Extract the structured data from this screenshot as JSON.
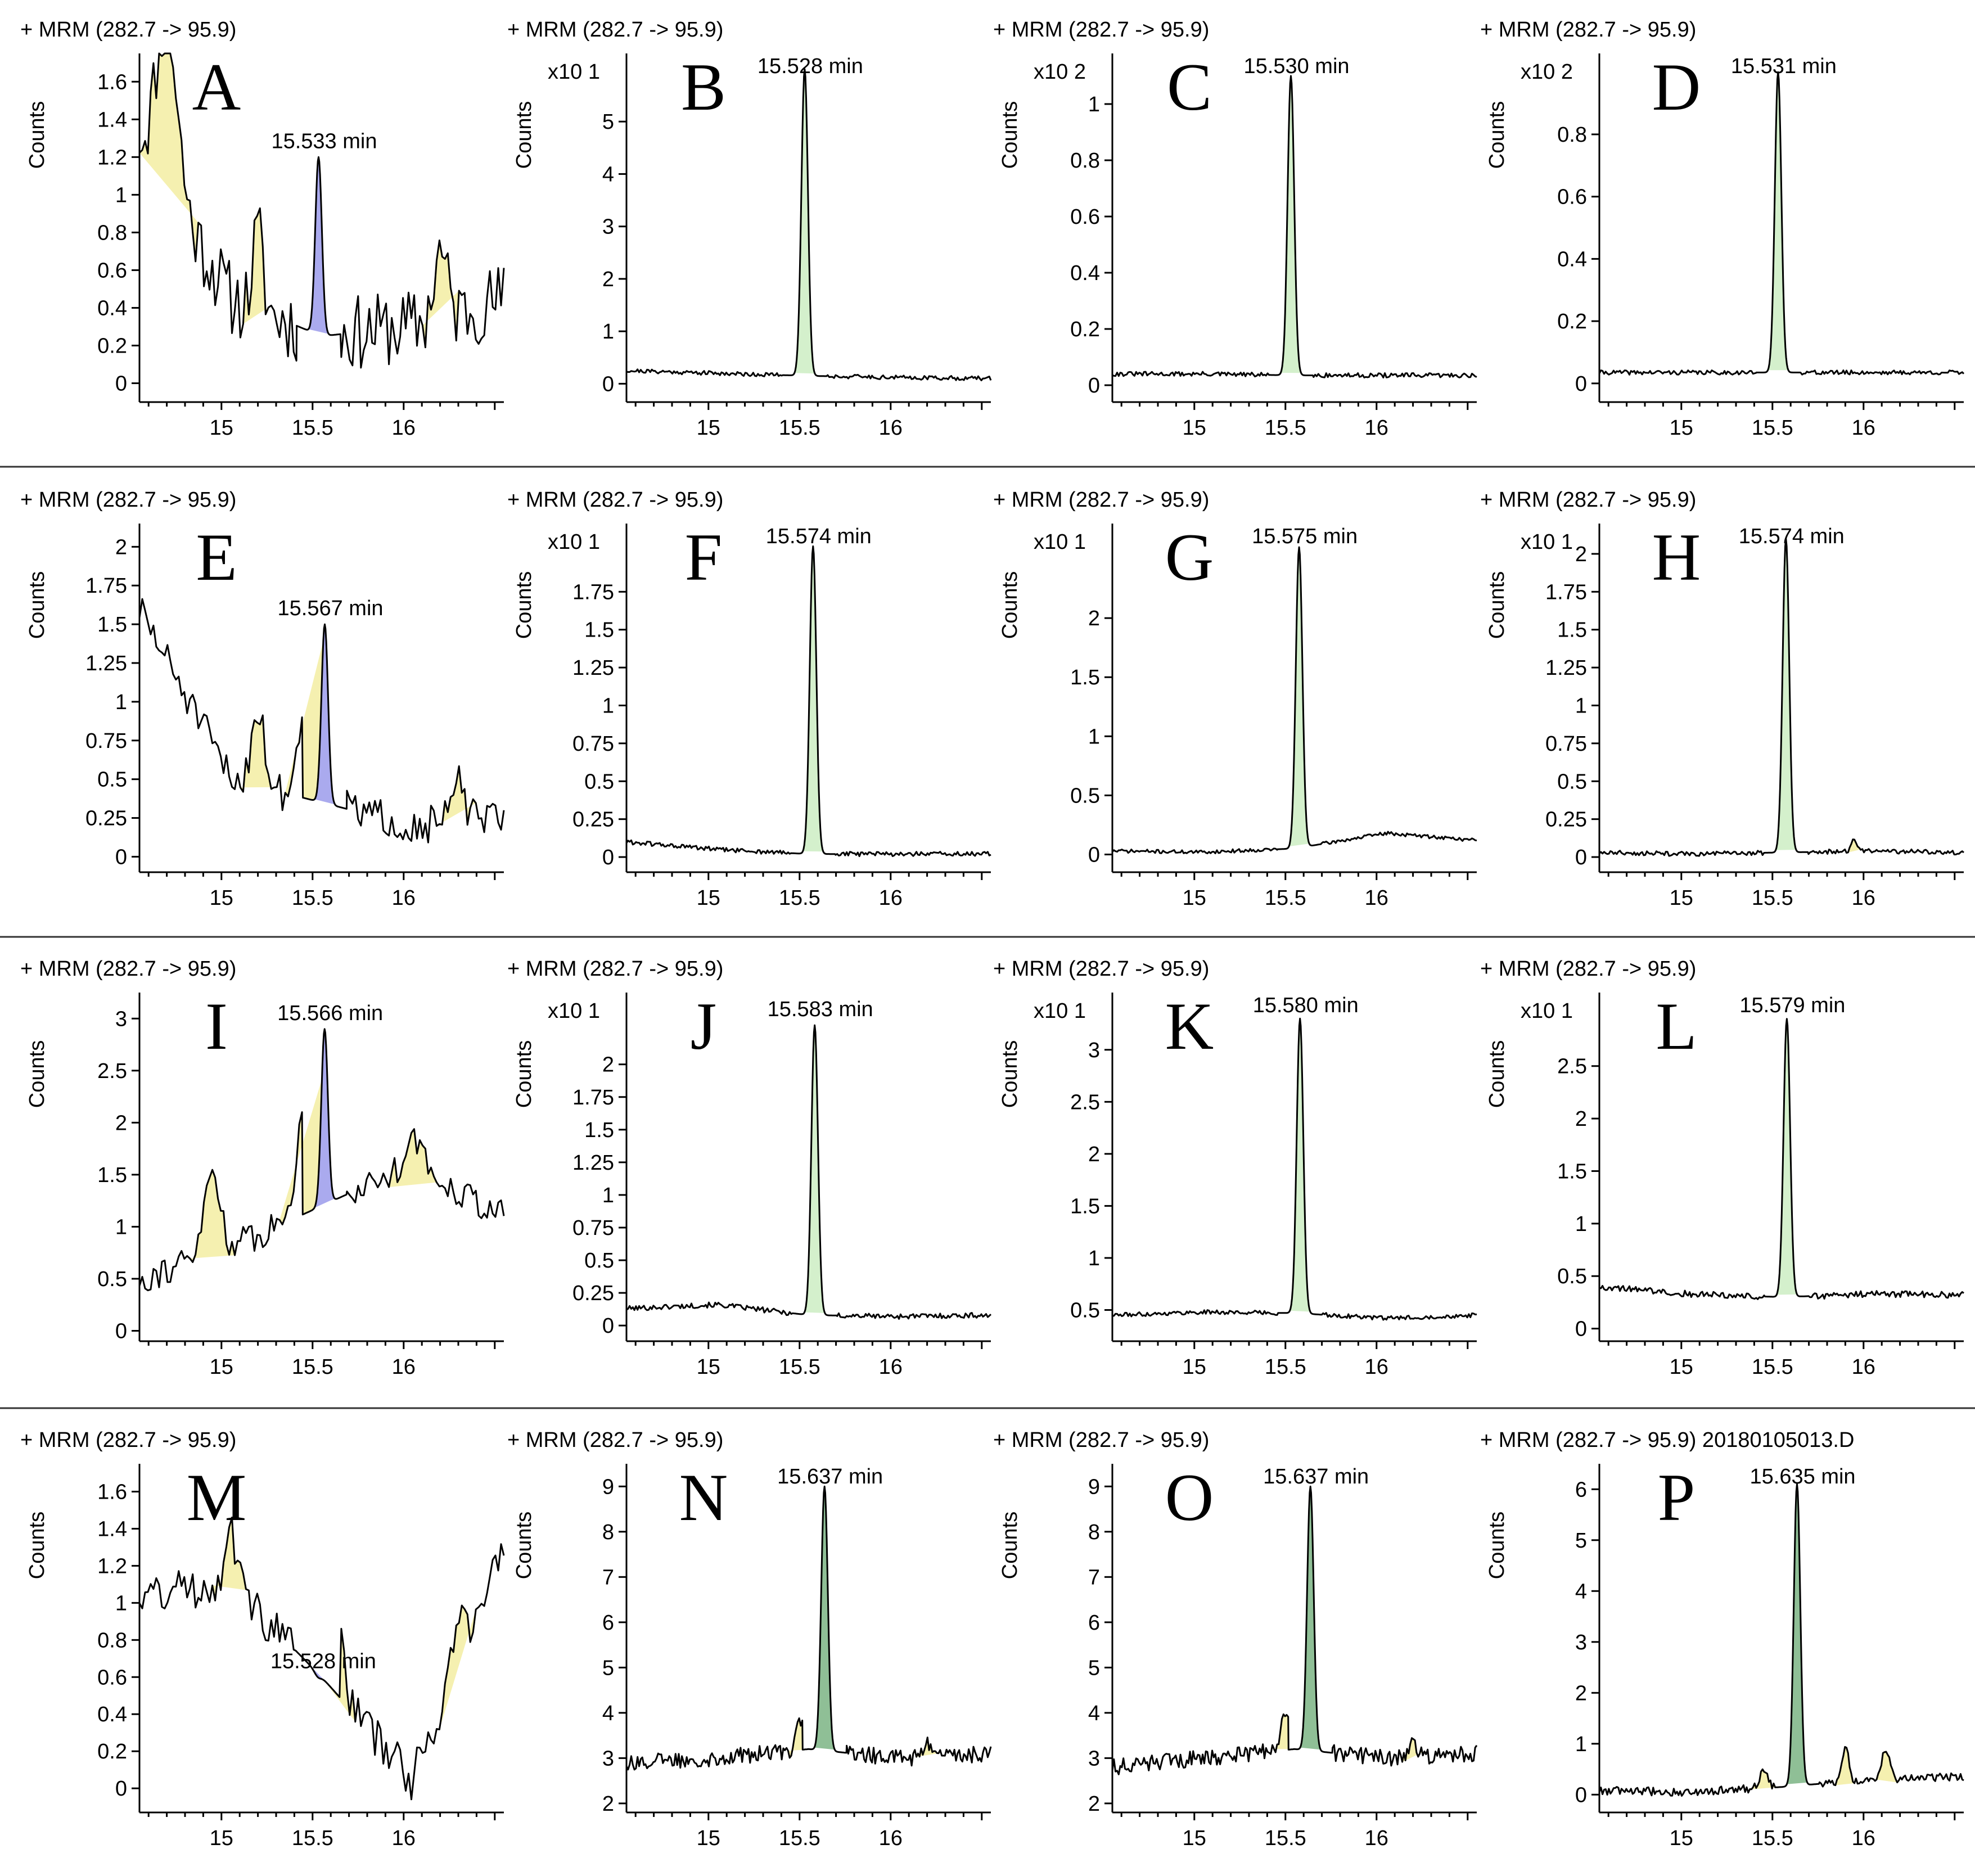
{
  "figure": {
    "colors": {
      "trace": "#000000",
      "peak_green": "#d4f0cc",
      "peak_dark_green": "#8fbf96",
      "peak_blue": "#aaaaee",
      "noise_yellow": "#f5f0b0",
      "separator": "#333333"
    }
  },
  "chart_data": [
    {
      "label": "A",
      "type": "line",
      "header": "+ MRM (282.7 -> 95.9)",
      "ylabel": "Counts",
      "exponent": "",
      "peak_label": "15.533 min",
      "peak_rt": 15.533,
      "peak_height": 1.2,
      "peak_fill": "blue",
      "noise": "high",
      "baseline": [
        1.3,
        0.45,
        0.25,
        0.3,
        0.45
      ],
      "noise_amp": 0.2,
      "humps": [
        {
          "x": 14.7,
          "h": 0.9,
          "w": 0.08
        },
        {
          "x": 15.2,
          "h": 0.4,
          "w": 0.04
        },
        {
          "x": 16.2,
          "h": 0.35,
          "w": 0.05
        }
      ],
      "yticks": [
        0,
        0.2,
        0.4,
        0.6,
        0.8,
        1,
        1.2,
        1.4,
        1.6
      ],
      "ylim": [
        -0.1,
        1.75
      ],
      "xticks": [
        15,
        15.5,
        16
      ],
      "xlim": [
        14.55,
        16.55
      ],
      "seed": 11
    },
    {
      "label": "B",
      "type": "line",
      "header": "+ MRM (282.7 -> 95.9)",
      "ylabel": "Counts",
      "exponent": "x10 1",
      "peak_label": "15.528 min",
      "peak_rt": 15.528,
      "peak_height": 6.0,
      "peak_fill": "green",
      "noise": "low",
      "baseline": [
        0.25,
        0.2,
        0.15,
        0.12,
        0.1
      ],
      "noise_amp": 0.04,
      "humps": [],
      "yticks": [
        0,
        1,
        2,
        3,
        4,
        5
      ],
      "ylim": [
        -0.35,
        6.3
      ],
      "xticks": [
        15,
        15.5,
        16
      ],
      "xlim": [
        14.55,
        16.55
      ],
      "seed": 21
    },
    {
      "label": "C",
      "type": "line",
      "header": "+ MRM (282.7 -> 95.9)",
      "ylabel": "Counts",
      "exponent": "x10 2",
      "peak_label": "15.530 min",
      "peak_rt": 15.53,
      "peak_height": 1.1,
      "peak_fill": "green",
      "noise": "low",
      "baseline": [
        0.04,
        0.04,
        0.035,
        0.035,
        0.035
      ],
      "noise_amp": 0.008,
      "humps": [],
      "yticks": [
        0,
        0.2,
        0.4,
        0.6,
        0.8,
        1
      ],
      "ylim": [
        -0.06,
        1.18
      ],
      "xticks": [
        15,
        15.5,
        16
      ],
      "xlim": [
        14.55,
        16.55
      ],
      "seed": 31
    },
    {
      "label": "D",
      "type": "line",
      "header": "+ MRM (282.7 -> 95.9)",
      "ylabel": "Counts",
      "exponent": "x10 2",
      "peak_label": "15.531 min",
      "peak_rt": 15.531,
      "peak_height": 1.0,
      "peak_fill": "green",
      "noise": "low",
      "baseline": [
        0.035,
        0.035,
        0.035,
        0.035,
        0.035
      ],
      "noise_amp": 0.007,
      "humps": [],
      "yticks": [
        0,
        0.2,
        0.4,
        0.6,
        0.8
      ],
      "ylim": [
        -0.06,
        1.06
      ],
      "xticks": [
        15,
        15.5,
        16
      ],
      "xlim": [
        14.55,
        16.55
      ],
      "seed": 41
    },
    {
      "label": "E",
      "type": "line",
      "header": "+ MRM (282.7 -> 95.9)",
      "ylabel": "Counts",
      "exponent": "",
      "peak_label": "15.567 min",
      "peak_rt": 15.567,
      "peak_height": 1.5,
      "peak_fill": "blue",
      "noise": "high",
      "baseline": [
        1.6,
        0.5,
        0.35,
        0.2,
        0.25
      ],
      "noise_amp": 0.12,
      "humps": [
        {
          "x": 15.2,
          "h": 0.5,
          "w": 0.05
        },
        {
          "x": 15.45,
          "h": 0.5,
          "w": 0.05
        },
        {
          "x": 16.3,
          "h": 0.25,
          "w": 0.05
        }
      ],
      "yticks": [
        0,
        0.25,
        0.5,
        0.75,
        1,
        1.25,
        1.5,
        1.75,
        2
      ],
      "ylim": [
        -0.1,
        2.15
      ],
      "xticks": [
        15,
        15.5,
        16
      ],
      "xlim": [
        14.55,
        16.55
      ],
      "seed": 51
    },
    {
      "label": "F",
      "type": "line",
      "header": "+ MRM (282.7 -> 95.9)",
      "ylabel": "Counts",
      "exponent": "x10 1",
      "peak_label": "15.574 min",
      "peak_rt": 15.574,
      "peak_height": 2.05,
      "peak_fill": "green",
      "noise": "low",
      "baseline": [
        0.1,
        0.05,
        0.02,
        0.02,
        0.02
      ],
      "noise_amp": 0.015,
      "humps": [],
      "yticks": [
        0,
        0.25,
        0.5,
        0.75,
        1,
        1.25,
        1.5,
        1.75
      ],
      "ylim": [
        -0.1,
        2.2
      ],
      "xticks": [
        15,
        15.5,
        16
      ],
      "xlim": [
        14.55,
        16.55
      ],
      "seed": 61
    },
    {
      "label": "G",
      "type": "line",
      "header": "+ MRM (282.7 -> 95.9)",
      "ylabel": "Counts",
      "exponent": "x10 1",
      "peak_label": "15.575 min",
      "peak_rt": 15.575,
      "peak_height": 2.6,
      "peak_fill": "green",
      "noise": "low",
      "baseline": [
        0.03,
        0.02,
        0.05,
        0.18,
        0.12
      ],
      "noise_amp": 0.015,
      "humps": [],
      "yticks": [
        0,
        0.5,
        1,
        1.5,
        2
      ],
      "ylim": [
        -0.15,
        2.8
      ],
      "xticks": [
        15,
        15.5,
        16
      ],
      "xlim": [
        14.55,
        16.55
      ],
      "seed": 71
    },
    {
      "label": "H",
      "type": "line",
      "header": "+ MRM (282.7 -> 95.9)",
      "ylabel": "Counts",
      "exponent": "x10 1",
      "peak_label": "15.574 min",
      "peak_rt": 15.574,
      "peak_height": 2.1,
      "peak_fill": "green",
      "noise": "low",
      "baseline": [
        0.03,
        0.02,
        0.03,
        0.04,
        0.03
      ],
      "noise_amp": 0.015,
      "humps": [
        {
          "x": 15.95,
          "h": 0.08,
          "w": 0.02
        }
      ],
      "yticks": [
        0,
        0.25,
        0.5,
        0.75,
        1,
        1.25,
        1.5,
        1.75,
        2
      ],
      "ylim": [
        -0.1,
        2.2
      ],
      "xticks": [
        15,
        15.5,
        16
      ],
      "xlim": [
        14.55,
        16.55
      ],
      "seed": 81
    },
    {
      "label": "I",
      "type": "line",
      "header": "+ MRM (282.7 -> 95.9)",
      "ylabel": "Counts",
      "exponent": "",
      "peak_label": "15.566 min",
      "peak_rt": 15.566,
      "peak_height": 2.9,
      "peak_fill": "blue",
      "noise": "high",
      "baseline": [
        0.5,
        0.8,
        1.2,
        1.6,
        1.1
      ],
      "noise_amp": 0.15,
      "humps": [
        {
          "x": 14.95,
          "h": 0.8,
          "w": 0.06
        },
        {
          "x": 15.45,
          "h": 0.9,
          "w": 0.06
        },
        {
          "x": 16.05,
          "h": 0.3,
          "w": 0.06
        }
      ],
      "yticks": [
        0,
        0.5,
        1,
        1.5,
        2,
        2.5,
        3
      ],
      "ylim": [
        -0.1,
        3.25
      ],
      "xticks": [
        15,
        15.5,
        16
      ],
      "xlim": [
        14.55,
        16.55
      ],
      "seed": 91
    },
    {
      "label": "J",
      "type": "line",
      "header": "+ MRM (282.7 -> 95.9)",
      "ylabel": "Counts",
      "exponent": "x10 1",
      "peak_label": "15.583 min",
      "peak_rt": 15.583,
      "peak_height": 2.3,
      "peak_fill": "green",
      "noise": "low",
      "baseline": [
        0.13,
        0.16,
        0.08,
        0.07,
        0.08
      ],
      "noise_amp": 0.02,
      "humps": [],
      "yticks": [
        0,
        0.25,
        0.5,
        0.75,
        1,
        1.25,
        1.5,
        1.75,
        2
      ],
      "ylim": [
        -0.12,
        2.55
      ],
      "xticks": [
        15,
        15.5,
        16
      ],
      "xlim": [
        14.55,
        16.55
      ],
      "seed": 101
    },
    {
      "label": "K",
      "type": "line",
      "header": "+ MRM (282.7 -> 95.9)",
      "ylabel": "Counts",
      "exponent": "x10 1",
      "peak_label": "15.580 min",
      "peak_rt": 15.58,
      "peak_height": 3.3,
      "peak_fill": "green",
      "noise": "low",
      "baseline": [
        0.45,
        0.48,
        0.47,
        0.42,
        0.45
      ],
      "noise_amp": 0.02,
      "humps": [],
      "yticks": [
        0.5,
        1,
        1.5,
        2,
        2.5,
        3
      ],
      "ylim": [
        0.2,
        3.55
      ],
      "xticks": [
        15,
        15.5,
        16
      ],
      "xlim": [
        14.55,
        16.55
      ],
      "seed": 111
    },
    {
      "label": "L",
      "type": "line",
      "header": "+ MRM (282.7 -> 95.9)",
      "ylabel": "Counts",
      "exponent": "x10 1",
      "peak_label": "15.579 min",
      "peak_rt": 15.579,
      "peak_height": 2.95,
      "peak_fill": "green",
      "noise": "low",
      "baseline": [
        0.4,
        0.33,
        0.3,
        0.33,
        0.32
      ],
      "noise_amp": 0.03,
      "humps": [],
      "yticks": [
        0,
        0.5,
        1,
        1.5,
        2,
        2.5
      ],
      "ylim": [
        -0.12,
        3.2
      ],
      "xticks": [
        15,
        15.5,
        16
      ],
      "xlim": [
        14.55,
        16.55
      ],
      "seed": 121
    },
    {
      "label": "M",
      "type": "line",
      "header": "+ MRM (282.7 -> 95.9)",
      "ylabel": "Counts",
      "exponent": "",
      "peak_label": "15.528 min",
      "peak_rt": 15.528,
      "peak_height": 0.6,
      "peak_fill": "blue",
      "noise": "high",
      "baseline": [
        1.05,
        1.1,
        0.6,
        0.05,
        1.3
      ],
      "noise_amp": 0.12,
      "humps": [
        {
          "x": 15.05,
          "h": 0.3,
          "w": 0.05
        },
        {
          "x": 15.65,
          "h": 0.4,
          "w": 0.04
        },
        {
          "x": 16.3,
          "h": 0.25,
          "w": 0.05
        }
      ],
      "yticks": [
        0,
        0.2,
        0.4,
        0.6,
        0.8,
        1,
        1.2,
        1.4,
        1.6
      ],
      "ylim": [
        -0.13,
        1.75
      ],
      "xticks": [
        15,
        15.5,
        16
      ],
      "xlim": [
        14.55,
        16.55
      ],
      "seed": 131
    },
    {
      "label": "N",
      "type": "line",
      "header": "+ MRM (282.7 -> 95.9)",
      "ylabel": "Counts",
      "exponent": "",
      "peak_label": "15.637 min",
      "peak_rt": 15.637,
      "peak_height": 9.0,
      "peak_fill": "darkgreen",
      "noise": "mid",
      "baseline": [
        2.9,
        3.0,
        3.2,
        3.0,
        3.1
      ],
      "noise_amp": 0.18,
      "humps": [
        {
          "x": 15.5,
          "h": 0.7,
          "w": 0.03
        },
        {
          "x": 16.2,
          "h": 0.3,
          "w": 0.03
        }
      ],
      "yticks": [
        2,
        3,
        4,
        5,
        6,
        7,
        8,
        9
      ],
      "ylim": [
        1.8,
        9.5
      ],
      "xticks": [
        15,
        15.5,
        16
      ],
      "xlim": [
        14.55,
        16.55
      ],
      "seed": 141
    },
    {
      "label": "O",
      "type": "line",
      "header": "+ MRM (282.7 -> 95.9)",
      "ylabel": "Counts",
      "exponent": "",
      "peak_label": "15.637 min",
      "peak_rt": 15.637,
      "peak_height": 9.0,
      "peak_fill": "darkgreen",
      "noise": "mid",
      "baseline": [
        2.8,
        3.0,
        3.2,
        3.0,
        3.1
      ],
      "noise_amp": 0.18,
      "humps": [
        {
          "x": 15.5,
          "h": 0.8,
          "w": 0.03
        },
        {
          "x": 16.2,
          "h": 0.3,
          "w": 0.03
        }
      ],
      "yticks": [
        2,
        3,
        4,
        5,
        6,
        7,
        8,
        9
      ],
      "ylim": [
        1.8,
        9.5
      ],
      "xticks": [
        15,
        15.5,
        16
      ],
      "xlim": [
        14.55,
        16.55
      ],
      "seed": 151
    },
    {
      "label": "P",
      "type": "line",
      "header": "+ MRM (282.7 -> 95.9) 20180105013.D",
      "ylabel": "Counts",
      "exponent": "",
      "peak_label": "15.635 min",
      "peak_rt": 15.635,
      "peak_height": 6.1,
      "peak_fill": "darkgreen",
      "noise": "low",
      "baseline": [
        0.08,
        0.05,
        0.15,
        0.3,
        0.35
      ],
      "noise_amp": 0.08,
      "humps": [
        {
          "x": 15.45,
          "h": 0.35,
          "w": 0.03
        },
        {
          "x": 15.9,
          "h": 0.7,
          "w": 0.025
        },
        {
          "x": 16.12,
          "h": 0.6,
          "w": 0.03
        }
      ],
      "yticks": [
        0,
        1,
        2,
        3,
        4,
        5,
        6
      ],
      "ylim": [
        -0.35,
        6.5
      ],
      "xticks": [
        15,
        15.5,
        16
      ],
      "xlim": [
        14.55,
        16.55
      ],
      "seed": 161
    }
  ]
}
